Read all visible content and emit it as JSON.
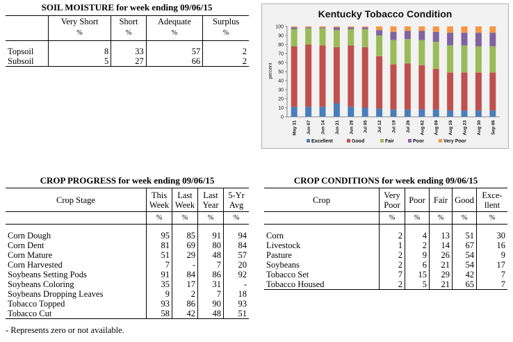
{
  "soil": {
    "title": "SOIL MOISTURE for week ending 09/06/15",
    "headers": [
      "Very Short",
      "Short",
      "Adequate",
      "Surplus"
    ],
    "units": [
      "%",
      "%",
      "%",
      "%"
    ],
    "rows": [
      {
        "label": "Topsoil",
        "values": [
          "8",
          "33",
          "57",
          "2"
        ]
      },
      {
        "label": "Subsoil",
        "values": [
          "5",
          "27",
          "66",
          "2"
        ]
      }
    ]
  },
  "progress": {
    "title": "CROP PROGRESS for week ending 09/06/15",
    "stage_header": "Crop Stage",
    "col_headers": [
      [
        "This",
        "Week"
      ],
      [
        "Last",
        "Week"
      ],
      [
        "Last",
        "Year"
      ],
      [
        "5-Yr",
        "Avg"
      ]
    ],
    "units": [
      "%",
      "%",
      "%",
      "%"
    ],
    "rows": [
      {
        "label": "Corn Dough",
        "values": [
          "95",
          "85",
          "91",
          "94"
        ]
      },
      {
        "label": "Corn Dent",
        "values": [
          "81",
          "69",
          "80",
          "84"
        ]
      },
      {
        "label": "Corn Mature",
        "values": [
          "51",
          "29",
          "48",
          "57"
        ]
      },
      {
        "label": "Corn Harvested",
        "values": [
          "7",
          "-",
          "7",
          "20"
        ]
      },
      {
        "label": "Soybeans Setting Pods",
        "values": [
          "91",
          "84",
          "86",
          "92"
        ]
      },
      {
        "label": "Soybeans Coloring",
        "values": [
          "35",
          "17",
          "31",
          "-"
        ]
      },
      {
        "label": "Soybeans Dropping Leaves",
        "values": [
          "9",
          "2",
          "7",
          "18"
        ]
      },
      {
        "label": "Tobacco Topped",
        "values": [
          "93",
          "86",
          "90",
          "93"
        ]
      },
      {
        "label": "Tobacco Cut",
        "values": [
          "58",
          "42",
          "48",
          "51"
        ]
      }
    ],
    "footnote": "- Represents zero or not available."
  },
  "conditions": {
    "title": "CROP CONDITIONS for week ending 09/06/15",
    "crop_header": "Crop",
    "col_headers": [
      [
        "Very",
        "Poor"
      ],
      [
        "Poor"
      ],
      [
        "Fair"
      ],
      [
        "Good"
      ],
      [
        "Exce-",
        "llent"
      ]
    ],
    "units": [
      "%",
      "%",
      "%",
      "%",
      "%"
    ],
    "rows": [
      {
        "label": "Corn",
        "values": [
          "2",
          "4",
          "13",
          "51",
          "30"
        ]
      },
      {
        "label": "Livestock",
        "values": [
          "1",
          "2",
          "14",
          "67",
          "16"
        ]
      },
      {
        "label": "Pasture",
        "values": [
          "2",
          "9",
          "26",
          "54",
          "9"
        ]
      },
      {
        "label": "Soybeans",
        "values": [
          "2",
          "6",
          "21",
          "54",
          "17"
        ]
      },
      {
        "label": "Tobacco Set",
        "values": [
          "7",
          "15",
          "29",
          "42",
          "7"
        ]
      },
      {
        "label": "Tobacco Housed",
        "values": [
          "2",
          "5",
          "21",
          "65",
          "7"
        ]
      }
    ]
  },
  "chart_data": {
    "type": "bar",
    "stacked": true,
    "title": "Kentucky Tobacco Condition",
    "xlabel": "",
    "ylabel": "percent",
    "ylim": [
      0,
      100
    ],
    "yticks": [
      0,
      10,
      20,
      30,
      40,
      50,
      60,
      70,
      80,
      90,
      100
    ],
    "grid": false,
    "legend_position": "bottom",
    "categories": [
      "May 31",
      "Jun 07",
      "Jun 14",
      "Jun 21",
      "Jun 28",
      "Jul 05",
      "Jul 12",
      "Jul 19",
      "Jul 26",
      "Aug 02",
      "Aug 09",
      "Aug 16",
      "Aug 23",
      "Aug 30",
      "Sep 06"
    ],
    "series": [
      {
        "name": "Excellent",
        "color": "#4a7ebb",
        "values": [
          11,
          11,
          11,
          15,
          11,
          10,
          9,
          8,
          8,
          8,
          8,
          7,
          7,
          7,
          7
        ]
      },
      {
        "name": "Good",
        "color": "#c0504d",
        "values": [
          67,
          69,
          68,
          62,
          68,
          67,
          58,
          50,
          51,
          49,
          45,
          42,
          42,
          42,
          42
        ]
      },
      {
        "name": "Fair",
        "color": "#9bbb59",
        "values": [
          19,
          18,
          19,
          19,
          18,
          20,
          23,
          27,
          27,
          28,
          30,
          30,
          30,
          29,
          29
        ]
      },
      {
        "name": "Poor",
        "color": "#8064a2",
        "values": [
          2,
          1,
          1,
          3,
          2,
          2,
          6,
          9,
          9,
          10,
          11,
          14,
          14,
          15,
          15
        ]
      },
      {
        "name": "Very Poor",
        "color": "#f79646",
        "values": [
          1,
          1,
          1,
          1,
          1,
          1,
          4,
          6,
          5,
          5,
          6,
          7,
          7,
          7,
          7
        ]
      }
    ]
  }
}
